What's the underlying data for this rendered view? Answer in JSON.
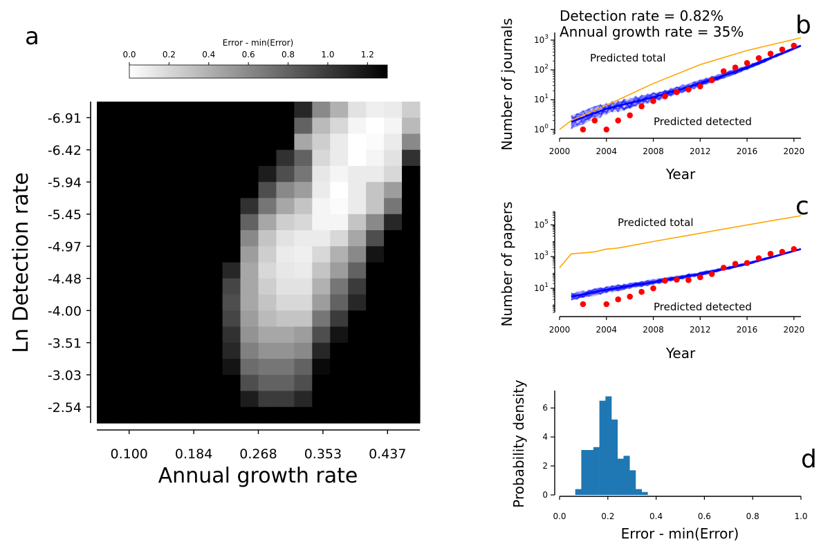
{
  "panels": {
    "a": {
      "label": "a",
      "type": "heatmap",
      "colorbar": {
        "label": "Error - min(Error)",
        "min": 0.0,
        "max": 1.3,
        "ticks": [
          "0.0",
          "0.2",
          "0.4",
          "0.6",
          "0.8",
          "1.0",
          "1.2"
        ],
        "tick_values": [
          0.0,
          0.2,
          0.4,
          0.6,
          0.8,
          1.0,
          1.2
        ]
      },
      "xlabel": "Annual growth rate",
      "ylabel": "Ln Detection rate",
      "xticks": [
        "0.100",
        "0.184",
        "0.268",
        "0.353",
        "0.437"
      ],
      "yticks": [
        "-6.91",
        "-6.42",
        "-5.94",
        "-5.45",
        "-4.97",
        "-4.48",
        "-4.00",
        "-3.51",
        "-3.03",
        "-2.54"
      ]
    },
    "b": {
      "label": "b",
      "type": "line",
      "text_lines": [
        "Detection rate = 0.82%",
        "Annual growth rate = 35%"
      ],
      "xlabel": "Year",
      "ylabel": "Number of journals",
      "xticks": [
        "2000",
        "2004",
        "2008",
        "2012",
        "2016",
        "2020"
      ],
      "yticks": [
        "10^0",
        "10^1",
        "10^2",
        "10^3"
      ],
      "total_label": "Predicted total",
      "detected_label": "Predicted detected"
    },
    "c": {
      "label": "c",
      "type": "line",
      "xlabel": "Year",
      "ylabel": "Number of papers",
      "xticks": [
        "2000",
        "2004",
        "2008",
        "2012",
        "2016",
        "2020"
      ],
      "yticks": [
        "10^1",
        "10^3",
        "10^5"
      ],
      "total_label": "Predicted total",
      "detected_label": "Predicted detected"
    },
    "d": {
      "label": "d",
      "type": "bar",
      "xlabel": "Error - min(Error)",
      "ylabel": "Probability density",
      "xticks": [
        "0.0",
        "0.2",
        "0.4",
        "0.6",
        "0.8",
        "1.0"
      ],
      "yticks": [
        "0",
        "2",
        "4",
        "6"
      ]
    }
  },
  "colors": {
    "total": "#ffa500",
    "detected": "#0000ff",
    "observed": "#ff0000",
    "hist": "#1f77b4"
  },
  "chart_data": [
    {
      "panel": "a",
      "type": "heatmap",
      "x_range": [
        0.1,
        0.5
      ],
      "y_range": [
        -6.91,
        -2.54
      ],
      "value_range": [
        0,
        1.3
      ],
      "values": [
        [
          1.3,
          1.3,
          1.3,
          1.3,
          1.3,
          1.3,
          1.3,
          1.3,
          1.3,
          1.3,
          1.3,
          1.1,
          0.6,
          0.4,
          0.15,
          0.08,
          0.1,
          0.25
        ],
        [
          1.3,
          1.3,
          1.3,
          1.3,
          1.3,
          1.3,
          1.3,
          1.3,
          1.3,
          1.3,
          1.3,
          0.8,
          0.35,
          0.2,
          0.05,
          0.0,
          0.05,
          0.35
        ],
        [
          1.3,
          1.3,
          1.3,
          1.3,
          1.3,
          1.3,
          1.3,
          1.3,
          1.3,
          1.3,
          1.3,
          0.45,
          0.25,
          0.1,
          0.0,
          0.02,
          0.1,
          0.6
        ],
        [
          1.3,
          1.3,
          1.3,
          1.3,
          1.3,
          1.3,
          1.3,
          1.3,
          1.3,
          1.3,
          1.05,
          0.8,
          0.2,
          0.1,
          0.0,
          0.05,
          0.15,
          1.05
        ],
        [
          1.3,
          1.3,
          1.3,
          1.3,
          1.3,
          1.3,
          1.3,
          1.3,
          1.3,
          1.15,
          0.9,
          0.7,
          0.12,
          0.05,
          0.1,
          0.1,
          0.2,
          1.3
        ],
        [
          1.3,
          1.3,
          1.3,
          1.3,
          1.3,
          1.3,
          1.3,
          1.3,
          1.3,
          0.9,
          0.6,
          0.5,
          0.1,
          0.0,
          0.1,
          0.3,
          0.5,
          1.3
        ],
        [
          1.3,
          1.3,
          1.3,
          1.3,
          1.3,
          1.3,
          1.3,
          1.3,
          1.05,
          0.7,
          0.45,
          0.3,
          0.05,
          0.02,
          0.1,
          0.3,
          0.7,
          1.3
        ],
        [
          1.3,
          1.3,
          1.3,
          1.3,
          1.3,
          1.3,
          1.3,
          1.3,
          0.8,
          0.45,
          0.25,
          0.2,
          0.05,
          0.05,
          0.3,
          0.6,
          1.1,
          1.3
        ],
        [
          1.3,
          1.3,
          1.3,
          1.3,
          1.3,
          1.3,
          1.3,
          1.3,
          0.6,
          0.3,
          0.15,
          0.1,
          0.1,
          0.2,
          0.45,
          0.9,
          1.3,
          1.3
        ],
        [
          1.3,
          1.3,
          1.3,
          1.3,
          1.3,
          1.3,
          1.3,
          1.3,
          0.5,
          0.25,
          0.1,
          0.08,
          0.2,
          0.4,
          0.6,
          1.2,
          1.3,
          1.3
        ],
        [
          1.3,
          1.3,
          1.3,
          1.3,
          1.3,
          1.3,
          1.3,
          1.1,
          0.45,
          0.2,
          0.12,
          0.1,
          0.3,
          0.5,
          0.8,
          1.3,
          1.3,
          1.3
        ],
        [
          1.3,
          1.3,
          1.3,
          1.3,
          1.3,
          1.3,
          1.3,
          0.95,
          0.45,
          0.25,
          0.15,
          0.15,
          0.4,
          0.7,
          1.0,
          1.3,
          1.3,
          1.3
        ],
        [
          1.3,
          1.3,
          1.3,
          1.3,
          1.3,
          1.3,
          1.3,
          0.9,
          0.45,
          0.3,
          0.2,
          0.2,
          0.5,
          0.8,
          1.1,
          1.3,
          1.3,
          1.3
        ],
        [
          1.3,
          1.3,
          1.3,
          1.3,
          1.3,
          1.3,
          1.3,
          0.95,
          0.5,
          0.35,
          0.3,
          0.3,
          0.7,
          1.0,
          1.3,
          1.3,
          1.3,
          1.3
        ],
        [
          1.3,
          1.3,
          1.3,
          1.3,
          1.3,
          1.3,
          1.3,
          1.05,
          0.55,
          0.45,
          0.45,
          0.5,
          0.9,
          1.2,
          1.3,
          1.3,
          1.3,
          1.3
        ],
        [
          1.3,
          1.3,
          1.3,
          1.3,
          1.3,
          1.3,
          1.3,
          1.1,
          0.65,
          0.55,
          0.55,
          0.6,
          1.1,
          1.3,
          1.3,
          1.3,
          1.3,
          1.3
        ],
        [
          1.3,
          1.3,
          1.3,
          1.3,
          1.3,
          1.3,
          1.3,
          1.2,
          0.75,
          0.7,
          0.7,
          0.8,
          1.25,
          1.3,
          1.3,
          1.3,
          1.3,
          1.3
        ],
        [
          1.3,
          1.3,
          1.3,
          1.3,
          1.3,
          1.3,
          1.3,
          1.3,
          0.9,
          0.8,
          0.8,
          0.9,
          1.3,
          1.3,
          1.3,
          1.3,
          1.3,
          1.3
        ],
        [
          1.3,
          1.3,
          1.3,
          1.3,
          1.3,
          1.3,
          1.3,
          1.3,
          1.15,
          1.0,
          1.0,
          1.1,
          1.3,
          1.3,
          1.3,
          1.3,
          1.3,
          1.3
        ],
        [
          1.3,
          1.3,
          1.3,
          1.3,
          1.3,
          1.3,
          1.3,
          1.3,
          1.3,
          1.3,
          1.3,
          1.3,
          1.3,
          1.3,
          1.3,
          1.3,
          1.3,
          1.3
        ]
      ]
    },
    {
      "panel": "b",
      "type": "line",
      "yscale": "log",
      "x_range": [
        2000,
        2020.6
      ],
      "y_range": [
        0.7,
        1800
      ],
      "total": {
        "x": [
          2000,
          2001,
          2002,
          2004,
          2008,
          2012,
          2016,
          2020.6
        ],
        "y": [
          1,
          2,
          3,
          6.5,
          35,
          150,
          450,
          1200
        ]
      },
      "detected": {
        "x": [
          2001,
          2004,
          2008,
          2012,
          2016,
          2020.6
        ],
        "y": [
          1.8,
          5,
          12,
          35,
          120,
          650
        ]
      },
      "observed": {
        "x": [
          2002,
          2003,
          2004,
          2005,
          2006,
          2007,
          2008,
          2009,
          2010,
          2011,
          2012,
          2013,
          2014,
          2015,
          2016,
          2017,
          2018,
          2019,
          2020
        ],
        "y": [
          1,
          2,
          1,
          2,
          3,
          6,
          9,
          13,
          18,
          22,
          28,
          45,
          90,
          120,
          170,
          250,
          350,
          480,
          650
        ]
      }
    },
    {
      "panel": "c",
      "type": "line",
      "yscale": "log",
      "x_range": [
        2000,
        2020.6
      ],
      "y_range": [
        0.3,
        700000
      ],
      "total": {
        "x": [
          2000,
          2001,
          2002,
          2003,
          2004,
          2005,
          2008,
          2012,
          2016,
          2020.6
        ],
        "y": [
          200,
          1500,
          1700,
          2000,
          3000,
          3500,
          9000,
          30000,
          100000,
          380000
        ]
      },
      "detected": {
        "x": [
          2001,
          2004,
          2008,
          2012,
          2016,
          2020.6
        ],
        "y": [
          3,
          8,
          25,
          80,
          350,
          3000
        ]
      },
      "observed": {
        "x": [
          2002,
          2004,
          2005,
          2006,
          2007,
          2008,
          2009,
          2010,
          2011,
          2012,
          2013,
          2014,
          2015,
          2016,
          2017,
          2018,
          2019,
          2020
        ],
        "y": [
          1,
          1,
          2,
          3,
          6,
          10,
          30,
          35,
          33,
          50,
          80,
          200,
          350,
          400,
          800,
          1500,
          2000,
          3000
        ]
      }
    },
    {
      "panel": "d",
      "type": "bar",
      "x_range": [
        0,
        1
      ],
      "y_range": [
        0,
        7.2
      ],
      "bins": [
        0.065,
        0.09,
        0.115,
        0.14,
        0.165,
        0.19,
        0.215,
        0.24,
        0.265,
        0.29,
        0.315,
        0.34,
        0.365
      ],
      "density": [
        0.4,
        3.1,
        3.1,
        3.3,
        6.5,
        6.8,
        5.2,
        2.5,
        2.7,
        1.7,
        0.4,
        0.2
      ]
    }
  ]
}
